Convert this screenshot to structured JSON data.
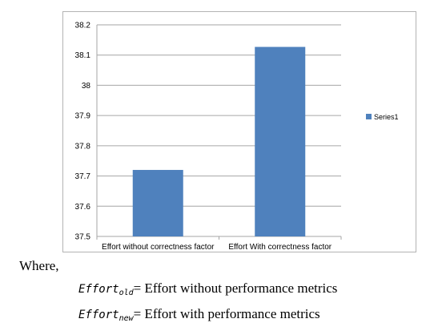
{
  "chart_data": {
    "type": "bar",
    "categories": [
      "Effort without correctness factor",
      "Effort With correctness factor"
    ],
    "series": [
      {
        "name": "Series1",
        "values": [
          37.72,
          38.127
        ],
        "color": "#4f81bd"
      }
    ],
    "ylim": [
      37.5,
      38.2
    ],
    "yticks": [
      "37.5",
      "37.6",
      "37.7",
      "37.8",
      "37.9",
      "38",
      "38.1",
      "38.2"
    ],
    "grid": true,
    "legend_position": "right"
  },
  "text": {
    "where": "Where,",
    "definitions": [
      {
        "symbol": "Effort",
        "subscript": "old",
        "text": "= Effort without performance metrics"
      },
      {
        "symbol": "Effort",
        "subscript": "new",
        "text": "= Effort with performance metrics"
      }
    ]
  }
}
